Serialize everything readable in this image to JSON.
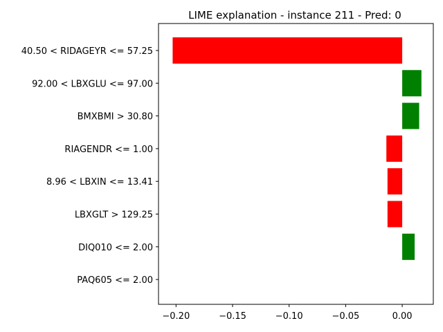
{
  "chart_data": {
    "type": "bar",
    "orientation": "horizontal",
    "title": "LIME explanation - instance 211 - Pred: 0",
    "xlabel": "",
    "ylabel": "",
    "categories": [
      "40.50 < RIDAGEYR <= 57.25",
      "92.00 < LBXGLU <= 97.00",
      "BMXBMI > 30.80",
      "RIAGENDR <= 1.00",
      "8.96 < LBXIN <= 13.41",
      "LBXGLT > 129.25",
      "DIQ010 <= 2.00",
      "PAQ605 <= 2.00"
    ],
    "values": [
      -0.203,
      0.017,
      0.015,
      -0.014,
      -0.013,
      -0.013,
      0.011,
      0.0
    ],
    "xlim": [
      -0.2155,
      0.0275
    ],
    "xticks": [
      -0.2,
      -0.15,
      -0.1,
      -0.05,
      0.0
    ],
    "xtick_labels": [
      "−0.20",
      "−0.15",
      "−0.10",
      "−0.05",
      "0.00"
    ],
    "grid": false,
    "colors": {
      "positive": "#008000",
      "negative": "#ff0000"
    }
  }
}
